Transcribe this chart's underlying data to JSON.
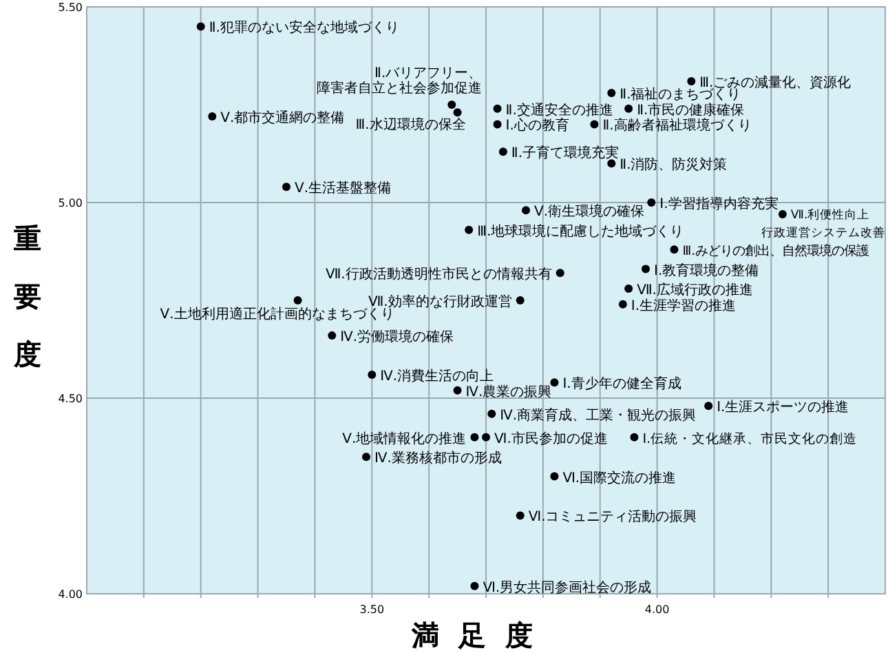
{
  "chart_data": {
    "type": "scatter",
    "xlabel": "満足度",
    "ylabel": "重要度",
    "xlim": [
      3.0,
      4.4
    ],
    "ylim": [
      4.0,
      5.5
    ],
    "xticks": [
      {
        "value": 3.1,
        "label": null
      },
      {
        "value": 3.2,
        "label": null
      },
      {
        "value": 3.3,
        "label": null
      },
      {
        "value": 3.4,
        "label": null
      },
      {
        "value": 3.5,
        "label": "3.50"
      },
      {
        "value": 3.6,
        "label": null
      },
      {
        "value": 3.7,
        "label": null
      },
      {
        "value": 3.8,
        "label": null
      },
      {
        "value": 3.9,
        "label": null
      },
      {
        "value": 4.0,
        "label": "4.00"
      },
      {
        "value": 4.1,
        "label": null
      },
      {
        "value": 4.2,
        "label": null
      },
      {
        "value": 4.3,
        "label": null
      }
    ],
    "yticks": [
      {
        "value": 4.0,
        "label": "4.00"
      },
      {
        "value": 4.5,
        "label": "4.50"
      },
      {
        "value": 5.0,
        "label": "5.00"
      },
      {
        "value": 5.5,
        "label": "5.50"
      }
    ],
    "grid": true,
    "marker": "circle",
    "series": [
      {
        "color": "#000000",
        "x": [
          3.2,
          3.64,
          3.65,
          3.22,
          3.35,
          4.06,
          3.92,
          3.72,
          3.95,
          3.72,
          3.89,
          3.73,
          3.92,
          3.99,
          3.77,
          4.22,
          3.67,
          4.03,
          3.83,
          3.98,
          3.95,
          3.76,
          3.94,
          3.37,
          3.43,
          3.5,
          3.82,
          3.65,
          4.09,
          3.71,
          3.68,
          3.7,
          3.96,
          3.49,
          3.82,
          3.76,
          3.68
        ],
        "values": [
          5.45,
          5.25,
          5.23,
          5.22,
          5.04,
          5.31,
          5.28,
          5.24,
          5.24,
          5.2,
          5.2,
          5.13,
          5.1,
          5.0,
          4.98,
          4.97,
          4.93,
          4.88,
          4.82,
          4.83,
          4.78,
          4.75,
          4.74,
          4.75,
          4.66,
          4.56,
          4.54,
          4.52,
          4.48,
          4.46,
          4.4,
          4.4,
          4.4,
          4.35,
          4.3,
          4.2,
          4.02
        ]
      }
    ],
    "annotations": [
      {
        "text": "Ⅱ.犯罪のない安全な地域づくり",
        "x": 3.2,
        "y": 5.45
      },
      {
        "text": "Ⅱ.バリアフリー、",
        "x": 3.64,
        "y": 5.25
      },
      {
        "text": "障害者自立と社会参加促進",
        "x": 3.64,
        "y": 5.25
      },
      {
        "text": "Ⅲ.水辺環境の保全",
        "x": 3.65,
        "y": 5.23
      },
      {
        "text": "Ⅴ.都市交通網の整備",
        "x": 3.22,
        "y": 5.22
      },
      {
        "text": "Ⅴ.生活基盤整備",
        "x": 3.35,
        "y": 5.04
      },
      {
        "text": "Ⅲ.ごみの減量化、資源化",
        "x": 4.06,
        "y": 5.31
      },
      {
        "text": "Ⅱ.福祉のまちづくり",
        "x": 3.92,
        "y": 5.28
      },
      {
        "text": "Ⅱ.交通安全の推進",
        "x": 3.72,
        "y": 5.24
      },
      {
        "text": "Ⅱ.市民の健康確保",
        "x": 3.95,
        "y": 5.24
      },
      {
        "text": "Ⅰ.心の教育",
        "x": 3.72,
        "y": 5.2
      },
      {
        "text": "Ⅱ.高齢者福祉環境づくり",
        "x": 3.89,
        "y": 5.2
      },
      {
        "text": "Ⅱ.子育て環境充実",
        "x": 3.73,
        "y": 5.13
      },
      {
        "text": "Ⅱ.消防、防災対策",
        "x": 3.92,
        "y": 5.1
      },
      {
        "text": "Ⅰ.学習指導内容充実",
        "x": 3.99,
        "y": 5.0
      },
      {
        "text": "Ⅴ.衛生環境の確保",
        "x": 3.77,
        "y": 4.98
      },
      {
        "text": "Ⅶ.利便性向上",
        "x": 4.22,
        "y": 4.97
      },
      {
        "text": "行政運営システム改善",
        "x": 4.22,
        "y": 4.97
      },
      {
        "text": "Ⅲ.地球環境に配慮した地域づくり",
        "x": 3.67,
        "y": 4.93
      },
      {
        "text": "Ⅲ.みどりの創出、自然環境の保護",
        "x": 4.03,
        "y": 4.88
      },
      {
        "text": "Ⅶ.行政活動透明性市民との情報共有",
        "x": 3.83,
        "y": 4.82
      },
      {
        "text": "Ⅰ.教育環境の整備",
        "x": 3.98,
        "y": 4.83
      },
      {
        "text": "Ⅶ.広域行政の推進",
        "x": 3.95,
        "y": 4.78
      },
      {
        "text": "Ⅶ.効率的な行財政運営",
        "x": 3.76,
        "y": 4.75
      },
      {
        "text": "Ⅰ.生涯学習の推進",
        "x": 3.94,
        "y": 4.74
      },
      {
        "text": "Ⅴ.土地利用適正化計画的なまちづくり",
        "x": 3.37,
        "y": 4.75
      },
      {
        "text": "Ⅳ.労働環境の確保",
        "x": 3.43,
        "y": 4.66
      },
      {
        "text": "Ⅳ.消費生活の向上",
        "x": 3.5,
        "y": 4.56
      },
      {
        "text": "Ⅰ.青少年の健全育成",
        "x": 3.82,
        "y": 4.54
      },
      {
        "text": "Ⅳ.農業の振興",
        "x": 3.65,
        "y": 4.52
      },
      {
        "text": "Ⅰ.生涯スポーツの推進",
        "x": 4.09,
        "y": 4.48
      },
      {
        "text": "Ⅳ.商業育成、工業・観光の振興",
        "x": 3.71,
        "y": 4.46
      },
      {
        "text": "Ⅴ.地域情報化の推進",
        "x": 3.68,
        "y": 4.4
      },
      {
        "text": "Ⅵ.市民参加の促進",
        "x": 3.7,
        "y": 4.4
      },
      {
        "text": "Ⅰ.伝統・文化継承、市民文化の創造",
        "x": 3.96,
        "y": 4.4
      },
      {
        "text": "Ⅳ.業務核都市の形成",
        "x": 3.49,
        "y": 4.35
      },
      {
        "text": "Ⅵ.国際交流の推進",
        "x": 3.82,
        "y": 4.3
      },
      {
        "text": "Ⅵ.コミュニティ活動の振興",
        "x": 3.76,
        "y": 4.2
      },
      {
        "text": "Ⅵ.男女共同参画社会の形成",
        "x": 3.68,
        "y": 4.02
      }
    ]
  }
}
